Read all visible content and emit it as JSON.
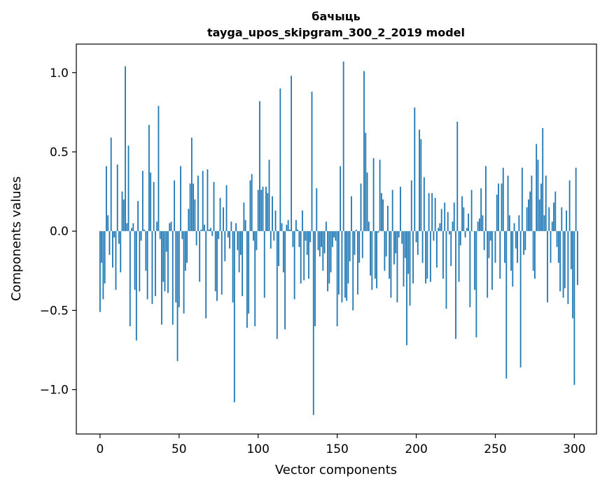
{
  "chart_data": {
    "type": "bar",
    "title": "бачыць",
    "subtitle": "tayga_upos_skipgram_300_2_2019 model",
    "xlabel": "Vector components",
    "ylabel": "Components values",
    "xlim": [
      -15,
      314
    ],
    "ylim": [
      -1.28,
      1.18
    ],
    "xticks": [
      0,
      50,
      100,
      150,
      200,
      250,
      300
    ],
    "xtick_labels": [
      "0",
      "50",
      "100",
      "150",
      "200",
      "250",
      "300"
    ],
    "yticks": [
      -1.0,
      -0.5,
      0.0,
      0.5,
      1.0
    ],
    "ytick_labels": [
      "−1.0",
      "−0.5",
      "0.0",
      "0.5",
      "1.0"
    ],
    "grid": false,
    "bar_color": "#1f77b4",
    "values": [
      -0.51,
      -0.2,
      -0.43,
      -0.33,
      0.41,
      0.1,
      -0.15,
      0.59,
      -0.23,
      -0.04,
      -0.37,
      0.42,
      -0.08,
      -0.26,
      0.25,
      0.2,
      1.04,
      0.05,
      0.54,
      -0.6,
      0.02,
      0.05,
      -0.37,
      -0.69,
      0.19,
      -0.38,
      -0.06,
      0.38,
      0.01,
      -0.25,
      -0.43,
      0.67,
      0.37,
      -0.46,
      0.31,
      -0.41,
      0.06,
      0.79,
      -0.05,
      -0.59,
      -0.32,
      -0.38,
      -0.13,
      -0.39,
      0.05,
      0.06,
      -0.59,
      0.32,
      -0.45,
      -0.82,
      -0.48,
      0.41,
      -0.05,
      -0.52,
      -0.25,
      -0.2,
      0.14,
      0.3,
      0.59,
      0.3,
      0.2,
      -0.09,
      0.35,
      -0.32,
      0.01,
      0.38,
      0.04,
      -0.55,
      0.39,
      0.01,
      0.02,
      -0.03,
      0.31,
      -0.38,
      -0.44,
      -0.05,
      0.21,
      -0.4,
      0.15,
      -0.19,
      0.29,
      -0.04,
      -0.11,
      0.06,
      -0.45,
      -1.08,
      0.05,
      -0.12,
      -0.26,
      -0.15,
      -0.41,
      0.18,
      0.07,
      -0.61,
      -0.52,
      0.32,
      0.36,
      -0.06,
      -0.6,
      -0.12,
      0.26,
      0.82,
      0.26,
      0.28,
      -0.42,
      0.28,
      0.24,
      0.45,
      -0.11,
      0.22,
      -0.06,
      0.13,
      -0.68,
      -0.22,
      0.9,
      0.05,
      -0.26,
      -0.62,
      0.04,
      0.07,
      0.01,
      0.98,
      -0.1,
      -0.43,
      0.07,
      0.01,
      -0.1,
      -0.33,
      0.13,
      -0.31,
      -0.06,
      -0.15,
      -0.3,
      -0.07,
      0.88,
      -1.16,
      -0.6,
      0.27,
      -0.12,
      -0.16,
      -0.1,
      -0.25,
      -0.14,
      0.06,
      -0.38,
      -0.33,
      -0.26,
      -0.1,
      -0.04,
      -0.06,
      -0.6,
      -0.4,
      0.41,
      -0.45,
      1.07,
      -0.42,
      -0.44,
      -0.33,
      -0.19,
      0.22,
      -0.5,
      -0.15,
      0.01,
      -0.4,
      -0.2,
      0.3,
      -0.17,
      1.01,
      0.62,
      0.37,
      0.06,
      -0.28,
      -0.37,
      0.46,
      -0.3,
      -0.36,
      -0.01,
      0.45,
      0.24,
      0.2,
      -0.25,
      -0.16,
      0.16,
      -0.3,
      -0.42,
      0.26,
      -0.21,
      -0.14,
      -0.45,
      -0.04,
      0.28,
      -0.08,
      -0.35,
      -0.17,
      -0.72,
      -0.27,
      -0.47,
      0.32,
      -0.33,
      0.78,
      -0.07,
      -0.15,
      0.64,
      0.58,
      -0.2,
      0.34,
      -0.33,
      -0.3,
      0.24,
      -0.32,
      0.24,
      -0.06,
      0.21,
      -0.23,
      0.02,
      0.05,
      0.14,
      -0.3,
      0.18,
      -0.49,
      0.12,
      -0.02,
      -0.22,
      0.06,
      0.18,
      -0.68,
      0.69,
      -0.32,
      -0.09,
      0.22,
      0.15,
      -0.04,
      0.02,
      0.11,
      -0.48,
      0.26,
      0.0,
      -0.37,
      -0.67,
      0.06,
      0.08,
      0.27,
      0.1,
      -0.12,
      0.41,
      -0.42,
      -0.17,
      -0.06,
      -0.37,
      0.0,
      -0.2,
      0.23,
      0.3,
      -0.3,
      0.3,
      0.4,
      -0.2,
      -0.93,
      0.35,
      0.1,
      -0.25,
      -0.35,
      0.05,
      -0.11,
      -0.2,
      0.1,
      -0.86,
      0.4,
      -0.15,
      -0.12,
      0.15,
      0.2,
      0.25,
      0.35,
      -0.25,
      -0.3,
      0.55,
      0.45,
      0.2,
      0.3,
      0.65,
      0.1,
      0.35,
      -0.45,
      0.15,
      -0.2,
      0.06,
      0.18,
      0.25,
      -0.1,
      -0.2,
      -0.38,
      0.15,
      -0.42,
      -0.36,
      0.13,
      -0.46,
      0.32,
      -0.24,
      -0.55,
      -0.97,
      0.4,
      -0.34
    ]
  }
}
